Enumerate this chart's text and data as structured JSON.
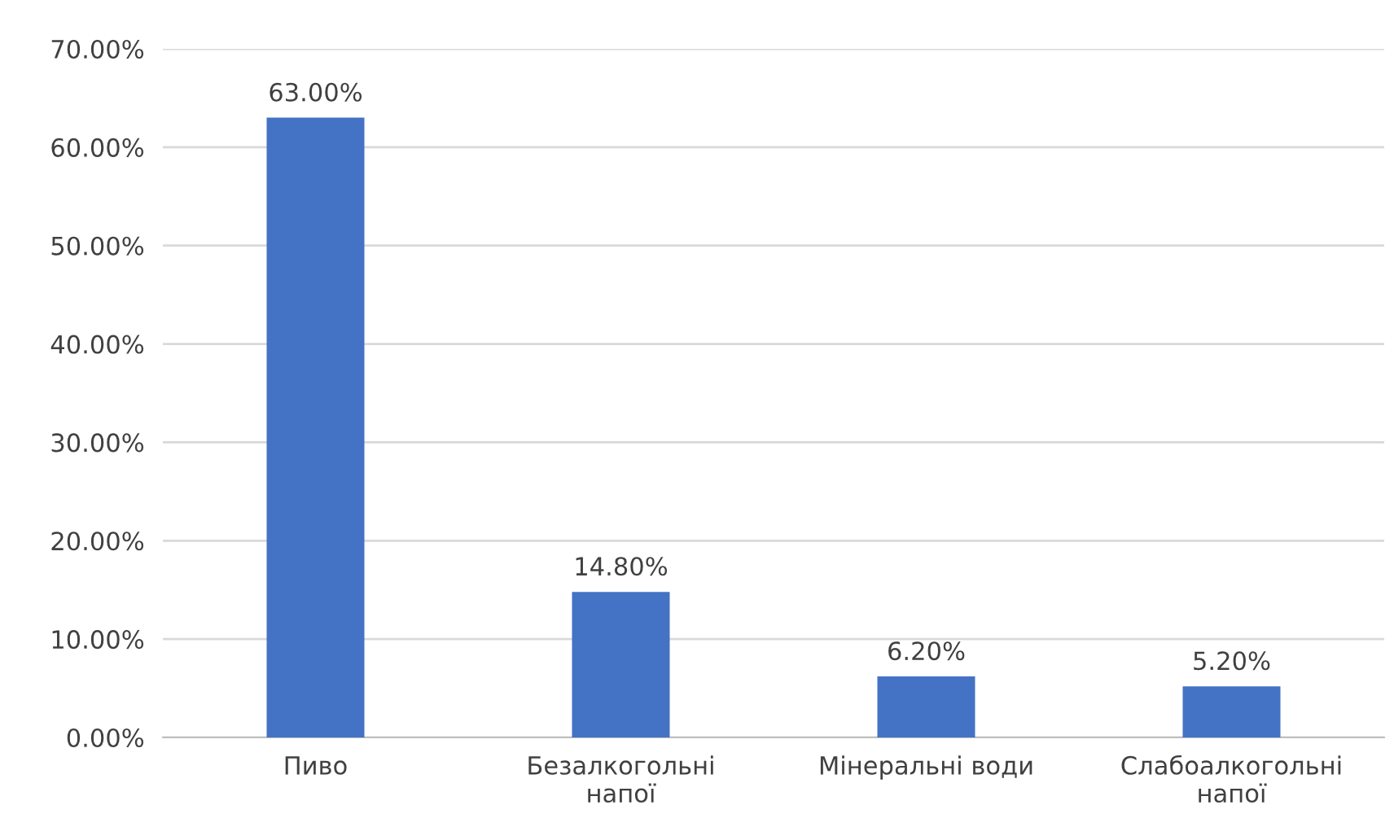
{
  "chart_data": {
    "type": "bar",
    "categories": [
      "Пиво",
      "Безалкогольні\nнапої",
      "Мінеральні води",
      "Слабоалкогольні\nнапої"
    ],
    "values": [
      63.0,
      14.8,
      6.2,
      5.2
    ],
    "value_labels": [
      "63.00%",
      "14.80%",
      "6.20%",
      "5.20%"
    ],
    "color": "#4472c4",
    "ylim": [
      0,
      70
    ],
    "yticks": [
      {
        "value": 0,
        "label": "0.00%"
      },
      {
        "value": 10,
        "label": "10.00%"
      },
      {
        "value": 20,
        "label": "20.00%"
      },
      {
        "value": 30,
        "label": "30.00%"
      },
      {
        "value": 40,
        "label": "40.00%"
      },
      {
        "value": 50,
        "label": "50.00%"
      },
      {
        "value": 60,
        "label": "60.00%"
      },
      {
        "value": 70,
        "label": "70.00%"
      }
    ],
    "grid": "y",
    "legend": false
  }
}
